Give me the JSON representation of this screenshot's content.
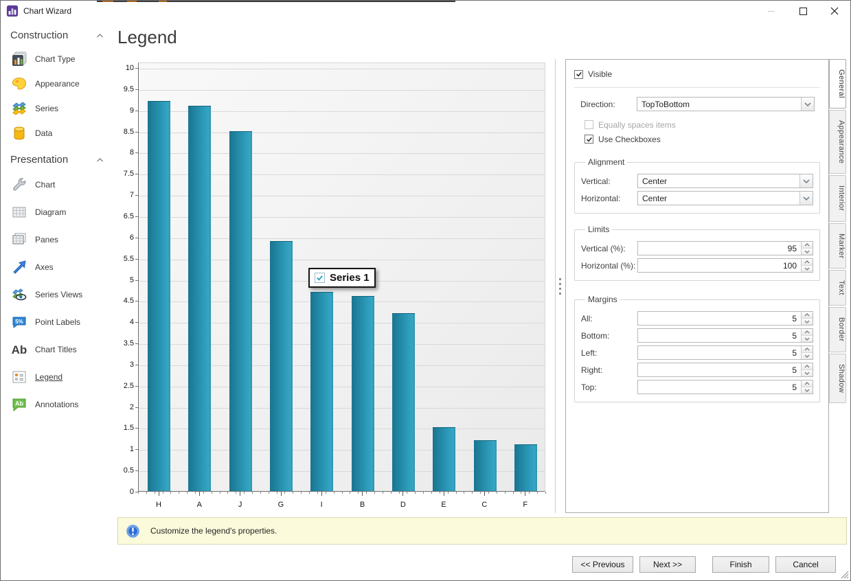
{
  "window": {
    "title": "Chart Wizard",
    "controls": {
      "minimize": "minimize",
      "maximize": "maximize",
      "close": "close"
    }
  },
  "sidebar": {
    "sections": [
      {
        "label": "Construction",
        "items": [
          {
            "label": "Chart Type",
            "icon": "chart-type-icon"
          },
          {
            "label": "Appearance",
            "icon": "appearance-icon"
          },
          {
            "label": "Series",
            "icon": "series-icon"
          },
          {
            "label": "Data",
            "icon": "data-icon"
          }
        ]
      },
      {
        "label": "Presentation",
        "items": [
          {
            "label": "Chart",
            "icon": "chart-icon"
          },
          {
            "label": "Diagram",
            "icon": "diagram-icon"
          },
          {
            "label": "Panes",
            "icon": "panes-icon"
          },
          {
            "label": "Axes",
            "icon": "axes-icon"
          },
          {
            "label": "Series Views",
            "icon": "series-views-icon"
          },
          {
            "label": "Point Labels",
            "icon": "point-labels-icon"
          },
          {
            "label": "Chart Titles",
            "icon": "chart-titles-icon"
          },
          {
            "label": "Legend",
            "icon": "legend-icon",
            "selected": true
          },
          {
            "label": "Annotations",
            "icon": "annotations-icon"
          }
        ]
      }
    ]
  },
  "main": {
    "title": "Legend"
  },
  "chart_data": {
    "type": "bar",
    "categories": [
      "H",
      "A",
      "J",
      "G",
      "I",
      "B",
      "D",
      "E",
      "C",
      "F"
    ],
    "values": [
      9.2,
      9.1,
      8.5,
      5.9,
      4.7,
      4.6,
      4.2,
      1.5,
      1.2,
      1.1
    ],
    "series_name": "Series 1",
    "title": "",
    "xlabel": "",
    "ylabel": "",
    "ylim": [
      0,
      10
    ],
    "ytick_step": 0.5,
    "grid": true,
    "legend_position": "center-overlay",
    "legend_overlay": {
      "label": "Series 1",
      "checked": true
    },
    "bar_color_start": "#1b7490",
    "bar_color_end": "#36a6c4"
  },
  "properties_panel": {
    "visible_checkbox": {
      "label": "Visible",
      "checked": true
    },
    "direction": {
      "label": "Direction:",
      "value": "TopToBottom"
    },
    "equally_spaces": {
      "label": "Equally spaces items",
      "checked": false,
      "disabled": true
    },
    "use_checkboxes": {
      "label": "Use Checkboxes",
      "checked": true
    },
    "alignment": {
      "title": "Alignment",
      "rows": [
        {
          "label": "Vertical:",
          "value": "Center"
        },
        {
          "label": "Horizontal:",
          "value": "Center"
        }
      ]
    },
    "limits": {
      "title": "Limits",
      "rows": [
        {
          "label": "Vertical (%):",
          "value": "95"
        },
        {
          "label": "Horizontal (%):",
          "value": "100"
        }
      ]
    },
    "margins": {
      "title": "Margins",
      "rows": [
        {
          "label": "All:",
          "value": "5"
        },
        {
          "label": "Bottom:",
          "value": "5"
        },
        {
          "label": "Left:",
          "value": "5"
        },
        {
          "label": "Right:",
          "value": "5"
        },
        {
          "label": "Top:",
          "value": "5"
        }
      ]
    }
  },
  "side_tabs": [
    {
      "label": "General",
      "active": true
    },
    {
      "label": "Appearance"
    },
    {
      "label": "Interior"
    },
    {
      "label": "Marker"
    },
    {
      "label": "Text"
    },
    {
      "label": "Border"
    },
    {
      "label": "Shadow"
    }
  ],
  "status_bar": {
    "message": "Customize the legend's properties."
  },
  "footer": {
    "buttons": [
      {
        "label": "<< Previous"
      },
      {
        "label": "Next >>"
      },
      {
        "label": "Finish"
      },
      {
        "label": "Cancel"
      }
    ]
  },
  "colors": {
    "bar_gradient_start": "#1b7490",
    "bar_gradient_end": "#36a6c4",
    "info_bar_bg": "#fbfbdc",
    "legend_check": "#29a3c7",
    "plot_grid": "#d8d8d8"
  }
}
